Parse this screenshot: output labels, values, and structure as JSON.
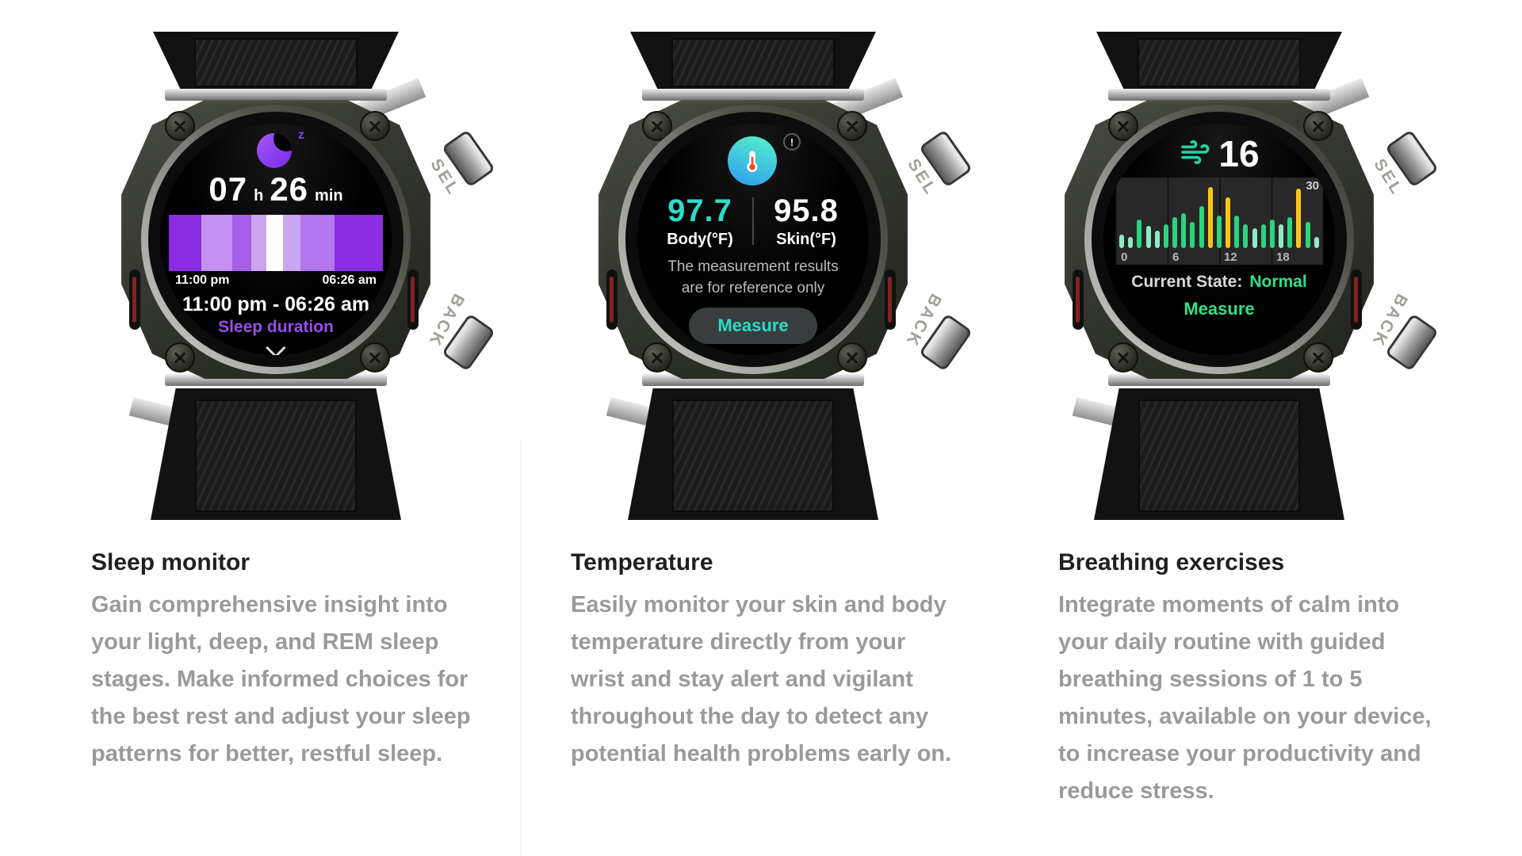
{
  "watch_chrome": {
    "sel_label": "SEL",
    "back_label": "BACK"
  },
  "columns": [
    {
      "id": "sleep",
      "heading": "Sleep monitor",
      "body": "Gain comprehensive insight into your light, deep, and REM sleep stages. Make informed choices for the best rest and adjust your sleep patterns for better, restful sleep."
    },
    {
      "id": "temperature",
      "heading": "Temperature",
      "body": "Easily monitor your skin and body temperature directly from your wrist and stay alert and vigilant throughout the day to detect any potential health problems early on."
    },
    {
      "id": "breathing",
      "heading": "Breathing exercises",
      "body": "Integrate moments of calm into your daily routine with guided breathing sessions of 1 to 5 minutes, available on your device, to increase your productivity and reduce stress."
    }
  ],
  "sleep_screen": {
    "z_label": "z",
    "hours": "07",
    "hours_unit": "h",
    "minutes": "26",
    "minutes_unit": "min",
    "start_time": "11:00 pm",
    "end_time": "06:26 am",
    "range_label": "11:00 pm - 06:26 am",
    "caption": "Sleep duration",
    "accent_color": "#9b4bf2"
  },
  "temp_screen": {
    "info_symbol": "!",
    "body_value": "97.7",
    "body_label": "Body(°F)",
    "skin_value": "95.8",
    "skin_label": "Skin(°F)",
    "note_line1": "The measurement results",
    "note_line2": "are for reference only",
    "button_label": "Measure",
    "accent_color": "#2bdcc6"
  },
  "breath_screen": {
    "rate_value": "16",
    "y_max_label": "30",
    "x_tick_0": "0",
    "x_tick_1": "6",
    "x_tick_2": "12",
    "x_tick_3": "18",
    "state_label": "Current State:",
    "state_value": "Normal",
    "button_label": "Measure",
    "accent_color": "#2ee28a"
  },
  "chart_data": [
    {
      "type": "bar",
      "subtype": "sleep-stage-timeline",
      "title": "Sleep stages 11:00 pm - 06:26 am",
      "x_range": [
        "11:00 pm",
        "06:26 am"
      ],
      "segments": [
        {
          "width_pct": 15.0,
          "color": "#8a2ce2"
        },
        {
          "width_pct": 14.5,
          "color": "#c48ff2"
        },
        {
          "width_pct": 9.0,
          "color": "#a55fe8"
        },
        {
          "width_pct": 7.0,
          "color": "#cda4f2"
        },
        {
          "width_pct": 8.0,
          "color": "#ffffff"
        },
        {
          "width_pct": 8.0,
          "color": "#cba6f2"
        },
        {
          "width_pct": 16.0,
          "color": "#b277ee"
        },
        {
          "width_pct": 22.5,
          "color": "#8a2ce2"
        }
      ]
    },
    {
      "type": "bar",
      "subtype": "breathing-rate-by-hour",
      "title": "Breathing rate over 24 h",
      "x_ticks": [
        "0",
        "6",
        "12",
        "18"
      ],
      "ylim": [
        0,
        30
      ],
      "values": [
        6,
        5,
        13,
        10,
        8,
        11,
        14,
        16,
        12,
        19,
        28,
        15,
        23,
        15,
        11,
        9,
        11,
        13,
        11,
        14,
        27,
        12,
        5
      ],
      "colors": [
        "m",
        "m",
        "g",
        "m",
        "m",
        "g",
        "g",
        "g",
        "g",
        "g",
        "y",
        "g",
        "y",
        "g",
        "g",
        "m",
        "g",
        "g",
        "m",
        "g",
        "y",
        "g",
        "m"
      ],
      "palette": {
        "m": "#8fe9c5",
        "g": "#2bd47d",
        "y": "#f5c51d"
      },
      "grid": "vertical quarters",
      "legend": "none"
    }
  ]
}
